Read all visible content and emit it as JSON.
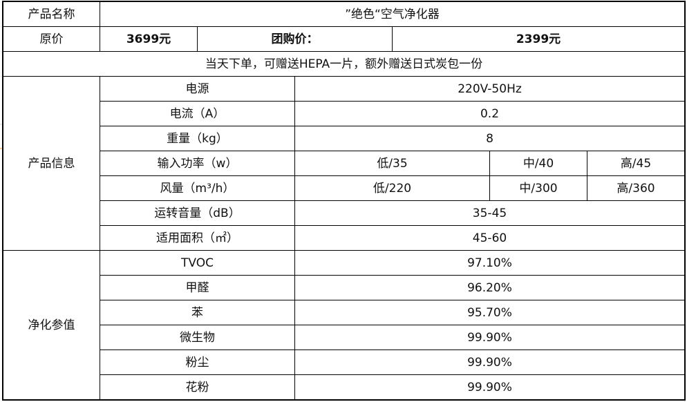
{
  "product_name_label": "产品名称",
  "product_name": "”绝色“空气净化器",
  "original_price_label": "原价",
  "original_price": "3699元",
  "group_price_label": "团购价：",
  "group_price": "2399元",
  "promotion": "当天下单，可赠送HEPA一片，额外赠送日式炭包一份",
  "product_info_label": "产品信息",
  "specs": {
    "power_supply": {
      "label": "电源",
      "value": "220V-50Hz"
    },
    "current": {
      "label": "电流（A）",
      "value": "0.2"
    },
    "weight": {
      "label": "重量（kg）",
      "value": "8"
    },
    "input_power": {
      "label": "输入功率（w）",
      "low": "低/35",
      "mid": "中/40",
      "high": "高/45"
    },
    "airflow": {
      "label": "风量（m³/h）",
      "low": "低/220",
      "mid": "中/300",
      "high": "高/360"
    },
    "noise": {
      "label": "运转音量（dB）",
      "value": "35-45"
    },
    "area": {
      "label": "适用面积（㎡）",
      "value": "45-60"
    }
  },
  "purification_label": "净化参值",
  "purification": [
    {
      "item": "TVOC",
      "value": "97.10%"
    },
    {
      "item": "甲醛",
      "value": "96.20%"
    },
    {
      "item": "苯",
      "value": "95.70%"
    },
    {
      "item": "微生物",
      "value": "99.90%"
    },
    {
      "item": "粉尘",
      "value": "99.90%"
    },
    {
      "item": "花粉",
      "value": "99.90%"
    }
  ]
}
